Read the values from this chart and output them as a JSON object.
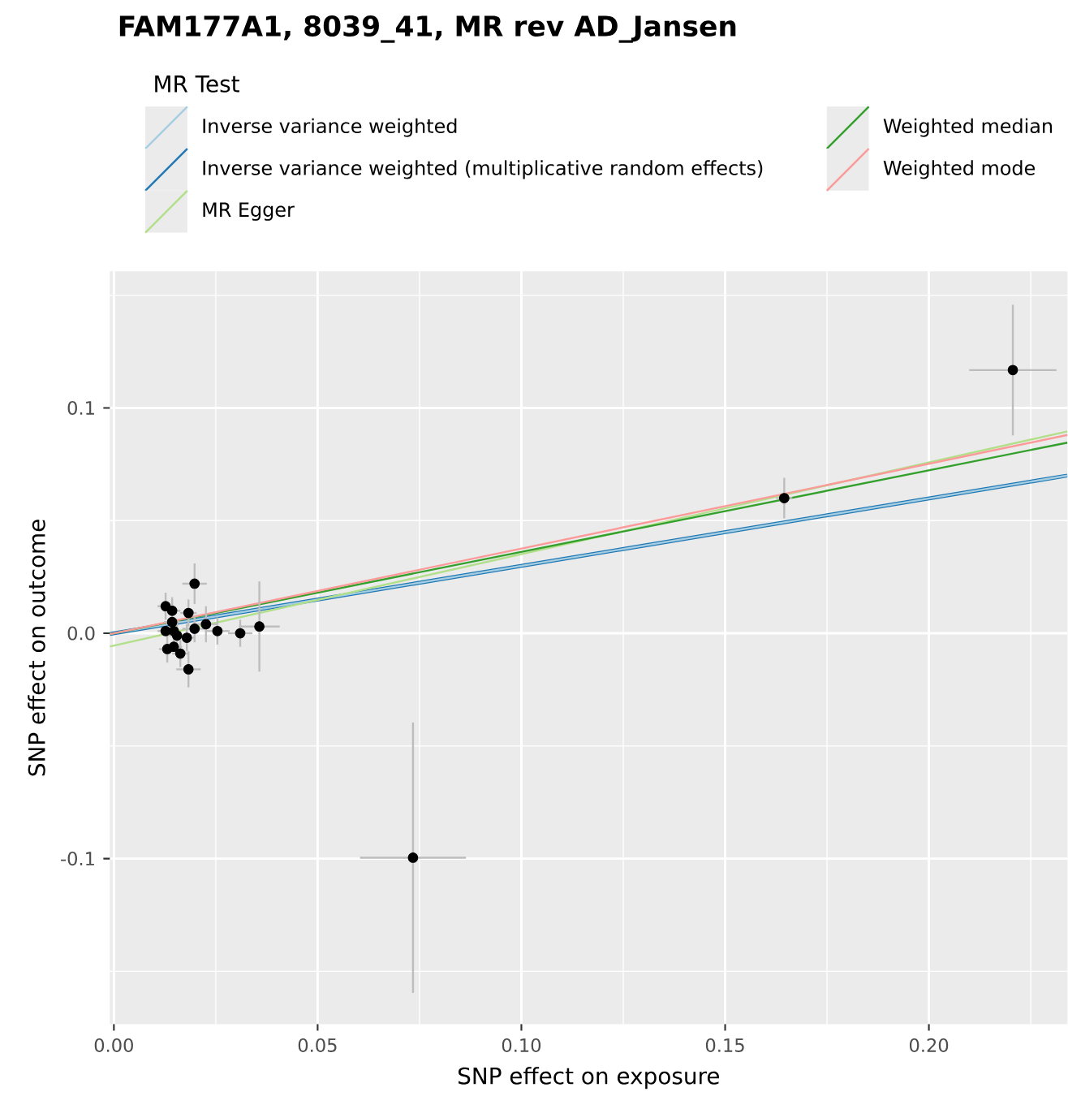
{
  "chart_data": {
    "type": "scatter",
    "title": "FAM177A1, 8039_41, MR rev AD_Jansen",
    "xlabel": "SNP effect on exposure",
    "ylabel": "SNP effect on outcome",
    "legend_title": "MR Test",
    "legend": "top",
    "grid": true,
    "xlim": [
      -0.001,
      0.234
    ],
    "ylim": [
      -0.1735,
      0.1606
    ],
    "xticks": [
      {
        "value": 0,
        "label": "0.00"
      },
      {
        "value": 0.05,
        "label": "0.05"
      },
      {
        "value": 0.1,
        "label": "0.10"
      },
      {
        "value": 0.15,
        "label": "0.15"
      },
      {
        "value": 0.2,
        "label": "0.20"
      }
    ],
    "yticks": [
      {
        "value": -0.1,
        "label": "-0.1"
      },
      {
        "value": 0,
        "label": "0.0"
      },
      {
        "value": 0.1,
        "label": "0.1"
      }
    ],
    "series": [
      {
        "type": "line",
        "name": "Inverse variance weighted (multiplicative random effects)",
        "color": "#1f78b4",
        "marker": "none",
        "x": [
          -0.001,
          0.234
        ],
        "values": [
          -0.0003,
          0.07
        ]
      },
      {
        "type": "line",
        "name": "Inverse variance weighted",
        "color": "#a6cee3",
        "marker": "none",
        "x": [
          -0.001,
          0.234
        ],
        "values": [
          -0.0003,
          0.07
        ]
      },
      {
        "type": "line",
        "name": "MR Egger",
        "color": "#b2df8a",
        "marker": "none",
        "x": [
          -0.001,
          0.234
        ],
        "values": [
          -0.0059,
          0.0896
        ]
      },
      {
        "type": "line",
        "name": "Weighted median",
        "color": "#33a02c",
        "marker": "none",
        "x": [
          -0.001,
          0.234
        ],
        "values": [
          -0.0004,
          0.0846
        ]
      },
      {
        "type": "line",
        "name": "Weighted mode",
        "color": "#fb9a99",
        "marker": "none",
        "x": [
          -0.001,
          0.234
        ],
        "values": [
          -0.0004,
          0.088
        ]
      },
      {
        "color": "#000000",
        "marker": "circle",
        "x": [
          0.0127,
          0.0143,
          0.0143,
          0.0127,
          0.0147,
          0.0155,
          0.0131,
          0.0147,
          0.0163,
          0.0183,
          0.0179,
          0.0183,
          0.0198,
          0.0198,
          0.0226,
          0.0254,
          0.031,
          0.0357,
          0.0734,
          0.1645,
          0.2206
        ],
        "values": [
          0.012,
          0.01,
          0.005,
          0.001,
          0.001,
          -0.001,
          -0.007,
          -0.006,
          -0.009,
          -0.016,
          -0.002,
          0.009,
          0.022,
          0.002,
          0.004,
          0.001,
          0.0,
          0.003,
          -0.0996,
          0.06,
          0.1168
        ],
        "errors": [
          0.006,
          0.006,
          null,
          null,
          0.006,
          0.006,
          0.006,
          null,
          0.006,
          0.008,
          0.006,
          0.006,
          0.009,
          0.006,
          0.008,
          0.006,
          0.006,
          0.02,
          0.06,
          0.009,
          0.029
        ],
        "xerrors": [
          0.002,
          0.002,
          0.002,
          0.002,
          null,
          0.002,
          0.002,
          0.002,
          0.002,
          0.003,
          0.002,
          0.002,
          0.003,
          0.003,
          0.003,
          0.003,
          0.003,
          0.005,
          0.013,
          0.002,
          0.0107
        ]
      }
    ]
  }
}
